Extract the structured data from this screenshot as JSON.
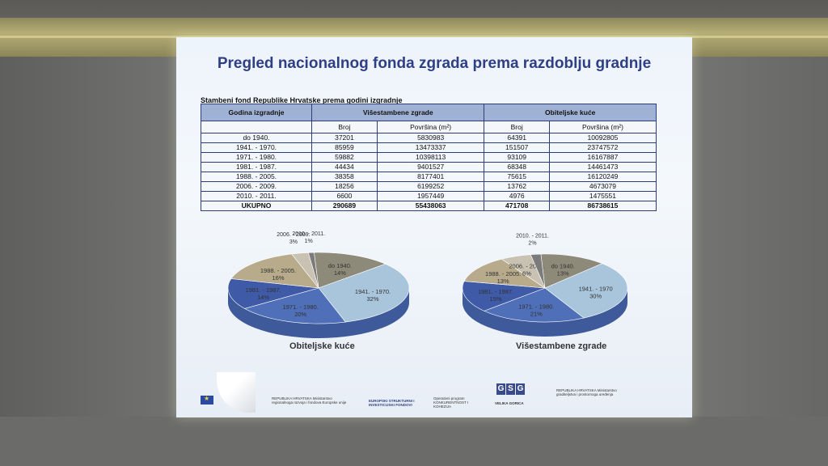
{
  "slide": {
    "title": "Pregled nacionalnog fonda zgrada prema razdoblju gradnje",
    "table_caption": "Stambeni fond Republike Hrvatske prema godini izgradnje",
    "table": {
      "col_period": "Godina izgradnje",
      "group_multi": "Višestambene zgrade",
      "group_family": "Obiteljske kuće",
      "sub_count": "Broj",
      "sub_area": "Površina (m²)",
      "rows": [
        {
          "period": "do 1940.",
          "m_count": "37201",
          "m_area": "5830983",
          "f_count": "64391",
          "f_area": "10092805"
        },
        {
          "period": "1941. - 1970.",
          "m_count": "85959",
          "m_area": "13473337",
          "f_count": "151507",
          "f_area": "23747572"
        },
        {
          "period": "1971. - 1980.",
          "m_count": "59882",
          "m_area": "10398113",
          "f_count": "93109",
          "f_area": "16167887"
        },
        {
          "period": "1981. - 1987.",
          "m_count": "44434",
          "m_area": "9401527",
          "f_count": "68348",
          "f_area": "14461473"
        },
        {
          "period": "1988. - 2005.",
          "m_count": "38358",
          "m_area": "8177401",
          "f_count": "75615",
          "f_area": "16120249"
        },
        {
          "period": "2006. - 2009.",
          "m_count": "18256",
          "m_area": "6199252",
          "f_count": "13762",
          "f_area": "4673079"
        },
        {
          "period": "2010. - 2011.",
          "m_count": "6600",
          "m_area": "1957449",
          "f_count": "4976",
          "f_area": "1475551"
        }
      ],
      "total": {
        "period": "UKUPNO",
        "m_count": "290689",
        "m_area": "55438063",
        "f_count": "471708",
        "f_area": "86738615"
      }
    },
    "pie_left": {
      "caption": "Obiteljske kuće",
      "labels": [
        {
          "name": "do 1940.",
          "pct": "14%"
        },
        {
          "name": "1941. - 1970.",
          "pct": "32%"
        },
        {
          "name": "1971. - 1980.",
          "pct": "20%"
        },
        {
          "name": "1981. - 1987.",
          "pct": "14%"
        },
        {
          "name": "1988. - 2005.",
          "pct": "16%"
        },
        {
          "name": "2006. - 2009.",
          "pct": "3%"
        },
        {
          "name": "2010. - 2011.",
          "pct": "1%"
        }
      ]
    },
    "pie_right": {
      "caption": "Višestambene zgrade",
      "labels": [
        {
          "name": "do 1940.",
          "pct": "13%"
        },
        {
          "name": "1941. - 1970",
          "pct": "30%"
        },
        {
          "name": "1971. - 1980.",
          "pct": "21%"
        },
        {
          "name": "1981. - 1987.",
          "pct": "15%"
        },
        {
          "name": "1988. - 2005.",
          "pct": "13%"
        },
        {
          "name": "2006. - 2009.",
          "pct": "6%"
        },
        {
          "name": "2010. - 2011.",
          "pct": "2%"
        }
      ]
    },
    "slice_colors": [
      "#8e8a7a",
      "#a9c5dc",
      "#4f6fb8",
      "#3f5aa6",
      "#b8ab8c",
      "#c9c2b2",
      "#7b7b7b"
    ],
    "footer": {
      "ministry1": "REPUBLIKA HRVATSKA Ministarstvo regionalnoga razvoja i fondova Europske unije",
      "esif": "EUROPSKI STRUKTURNI I INVESTICIJSKI FONDOVI",
      "op": "Operativni program KONKURENTNOST I KOHEZIJA",
      "gsg": "GSG",
      "velika": "VELIKA GORICA",
      "ministry2": "REPUBLIKA HRVATSKA Ministarstvo graditeljstva i prostornoga uređenja"
    }
  }
}
